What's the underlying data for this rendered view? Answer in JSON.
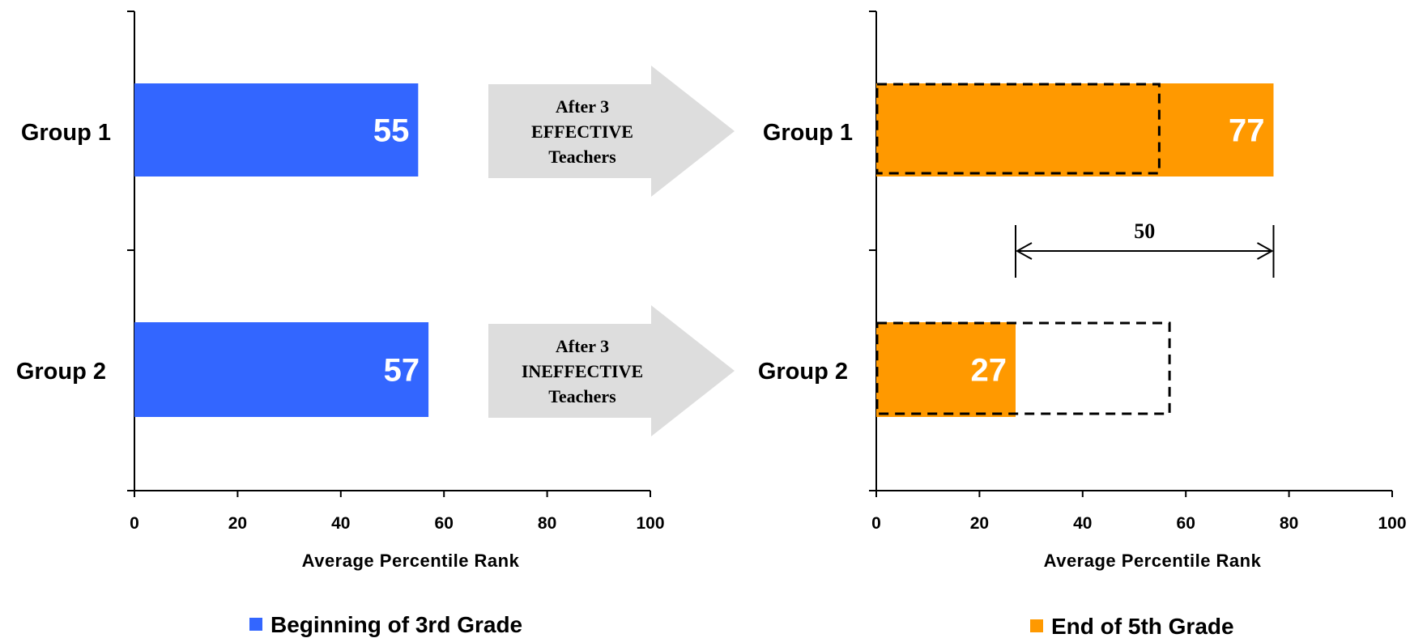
{
  "chart_data": [
    {
      "type": "bar",
      "orientation": "horizontal",
      "categories": [
        "Group 1",
        "Group 2"
      ],
      "series": [
        {
          "name": "Beginning of 3rd Grade",
          "values": [
            55,
            57
          ],
          "color": "#3366FF"
        }
      ],
      "xlabel": "Average Percentile Rank",
      "xlim": [
        0,
        100
      ],
      "xticks": [
        "0",
        "20",
        "40",
        "60",
        "80",
        "100"
      ],
      "data_labels": [
        "55",
        "57"
      ],
      "legend_label": "Beginning of 3rd Grade",
      "legend_position": "bottom"
    },
    {
      "type": "bar",
      "orientation": "horizontal",
      "categories": [
        "Group 1",
        "Group 2"
      ],
      "series": [
        {
          "name": "End of 5th Grade",
          "values": [
            77,
            27
          ],
          "color": "#FF9900"
        }
      ],
      "reference_outlines": [
        55,
        57
      ],
      "xlabel": "Average Percentile Rank",
      "xlim": [
        0,
        100
      ],
      "xticks": [
        "0",
        "20",
        "40",
        "60",
        "80",
        "100"
      ],
      "data_labels": [
        "77",
        "27"
      ],
      "legend_label": "End of 5th Grade",
      "legend_position": "bottom",
      "annotation": {
        "text": "50",
        "from": 27,
        "to": 77
      }
    }
  ],
  "arrows": [
    {
      "lines": [
        "After 3",
        "EFFECTIVE",
        "Teachers"
      ]
    },
    {
      "lines": [
        "After 3",
        "INEFFECTIVE",
        "Teachers"
      ]
    }
  ]
}
